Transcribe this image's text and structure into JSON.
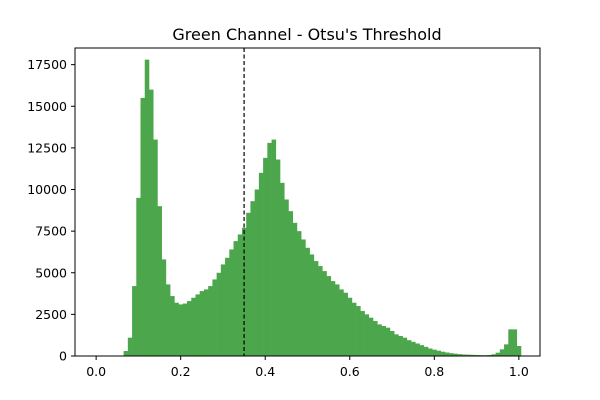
{
  "chart_data": {
    "type": "bar",
    "title": "Green Channel - Otsu's Threshold",
    "xlabel": "",
    "ylabel": "",
    "xlim": [
      -0.05,
      1.05
    ],
    "ylim": [
      0,
      18500
    ],
    "x_ticks": [
      0.0,
      0.2,
      0.4,
      0.6,
      0.8,
      1.0
    ],
    "x_tick_labels": [
      "0.0",
      "0.2",
      "0.4",
      "0.6",
      "0.8",
      "1.0"
    ],
    "y_ticks": [
      0,
      2500,
      5000,
      7500,
      10000,
      12500,
      15000,
      17500
    ],
    "y_tick_labels": [
      "0",
      "2500",
      "5000",
      "7500",
      "10000",
      "12500",
      "15000",
      "17500"
    ],
    "bar_color": "#4ca64c",
    "threshold": 0.35,
    "threshold_color": "#000000",
    "grid": false,
    "bins": {
      "x": [
        0.06,
        0.07,
        0.08,
        0.09,
        0.1,
        0.11,
        0.12,
        0.13,
        0.14,
        0.15,
        0.16,
        0.17,
        0.18,
        0.19,
        0.2,
        0.21,
        0.22,
        0.23,
        0.24,
        0.25,
        0.26,
        0.27,
        0.28,
        0.29,
        0.3,
        0.31,
        0.32,
        0.33,
        0.34,
        0.35,
        0.36,
        0.37,
        0.38,
        0.39,
        0.4,
        0.41,
        0.42,
        0.43,
        0.44,
        0.45,
        0.46,
        0.47,
        0.48,
        0.49,
        0.5,
        0.51,
        0.52,
        0.53,
        0.54,
        0.55,
        0.56,
        0.57,
        0.58,
        0.59,
        0.6,
        0.61,
        0.62,
        0.63,
        0.64,
        0.65,
        0.66,
        0.67,
        0.68,
        0.69,
        0.7,
        0.71,
        0.72,
        0.73,
        0.74,
        0.75,
        0.76,
        0.77,
        0.78,
        0.79,
        0.8,
        0.81,
        0.82,
        0.83,
        0.84,
        0.85,
        0.86,
        0.87,
        0.88,
        0.89,
        0.9,
        0.91,
        0.92,
        0.93,
        0.94,
        0.95,
        0.96,
        0.97,
        0.98,
        0.99,
        1.0
      ],
      "y": [
        0,
        300,
        1100,
        4200,
        9500,
        15500,
        17800,
        16000,
        13000,
        9000,
        5800,
        4300,
        3600,
        3200,
        3100,
        3150,
        3300,
        3500,
        3700,
        3900,
        4000,
        4200,
        4600,
        5000,
        5500,
        5900,
        6400,
        6900,
        7300,
        7700,
        8600,
        9300,
        10000,
        11000,
        11900,
        12800,
        13000,
        11800,
        10400,
        9400,
        8700,
        8000,
        7500,
        7000,
        6500,
        6100,
        5700,
        5400,
        5100,
        4800,
        4500,
        4300,
        4000,
        3800,
        3500,
        3200,
        3000,
        2700,
        2500,
        2300,
        2100,
        1900,
        1800,
        1700,
        1500,
        1300,
        1200,
        1100,
        950,
        850,
        750,
        650,
        550,
        450,
        380,
        320,
        260,
        210,
        170,
        140,
        110,
        90,
        80,
        70,
        60,
        55,
        50,
        60,
        100,
        200,
        400,
        700,
        1600,
        1600,
        600
      ]
    }
  }
}
